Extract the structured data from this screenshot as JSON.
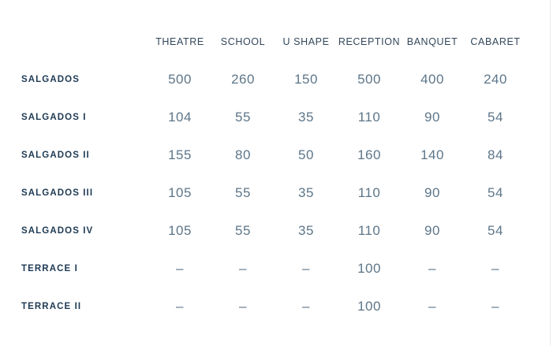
{
  "colors": {
    "background": "#ffffff",
    "header_text": "#33475b",
    "label_text": "#1e3a54",
    "value_text": "#5d7689",
    "right_divider": "#ececec"
  },
  "chart_data": {
    "type": "table",
    "title": "",
    "columns": [
      "THEATRE",
      "SCHOOL",
      "U SHAPE",
      "RECEPTION",
      "BANQUET",
      "CABARET"
    ],
    "rows": [
      {
        "label": "SALGADOS",
        "values": [
          "500",
          "260",
          "150",
          "500",
          "400",
          "240"
        ]
      },
      {
        "label": "SALGADOS I",
        "values": [
          "104",
          "55",
          "35",
          "110",
          "90",
          "54"
        ]
      },
      {
        "label": "SALGADOS II",
        "values": [
          "155",
          "80",
          "50",
          "160",
          "140",
          "84"
        ]
      },
      {
        "label": "SALGADOS III",
        "values": [
          "105",
          "55",
          "35",
          "110",
          "90",
          "54"
        ]
      },
      {
        "label": "SALGADOS IV",
        "values": [
          "105",
          "55",
          "35",
          "110",
          "90",
          "54"
        ]
      },
      {
        "label": "TERRACE I",
        "values": [
          "–",
          "–",
          "–",
          "100",
          "–",
          "–"
        ]
      },
      {
        "label": "TERRACE II",
        "values": [
          "–",
          "–",
          "–",
          "100",
          "–",
          "–"
        ]
      }
    ],
    "empty_cell_symbol": "–",
    "layout": {
      "grid": false,
      "legend": "none"
    }
  }
}
